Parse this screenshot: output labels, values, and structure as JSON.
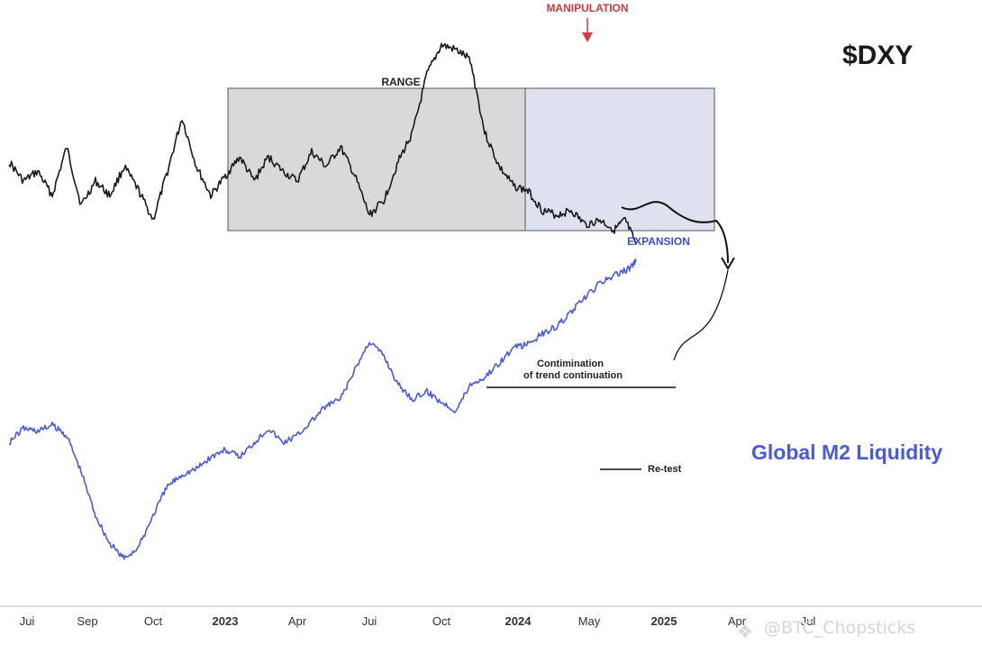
{
  "chart_data": {
    "type": "line",
    "title": "$DXY",
    "x_tick_labels": [
      "Jui",
      "Sep",
      "Oct",
      "2023",
      "Apr",
      "Jui",
      "Oct",
      "2024",
      "May",
      "2025",
      "Apr",
      "Jul"
    ],
    "series": [
      {
        "name": "$DXY",
        "color": "#1a1a1a",
        "x": [
          0,
          0.02,
          0.04,
          0.06,
          0.08,
          0.1,
          0.12,
          0.14,
          0.16,
          0.18,
          0.2,
          0.22,
          0.24,
          0.26,
          0.28,
          0.3,
          0.32,
          0.34,
          0.36,
          0.38,
          0.4,
          0.42,
          0.44,
          0.46,
          0.48,
          0.5,
          0.52,
          0.54,
          0.56,
          0.58,
          0.6,
          0.62,
          0.64,
          0.66,
          0.68,
          0.7,
          0.72,
          0.74,
          0.76,
          0.78,
          0.8,
          0.82,
          0.84,
          0.855,
          0.87
        ],
        "values": [
          108,
          104,
          106,
          101,
          111,
          99,
          104,
          101,
          107,
          102,
          96,
          106,
          117,
          107,
          101,
          105,
          109,
          104,
          109,
          106,
          104,
          110,
          107,
          111,
          105,
          97,
          100,
          108,
          114,
          126,
          132,
          131,
          129,
          114,
          107,
          103,
          102,
          98,
          97,
          98,
          95,
          96,
          94,
          96,
          91
        ]
      },
      {
        "name": "Global M2 Liquidity",
        "color": "#4a5bd8",
        "x": [
          0,
          0.02,
          0.04,
          0.06,
          0.08,
          0.1,
          0.12,
          0.14,
          0.16,
          0.18,
          0.2,
          0.22,
          0.24,
          0.26,
          0.28,
          0.3,
          0.32,
          0.34,
          0.36,
          0.38,
          0.4,
          0.42,
          0.44,
          0.46,
          0.48,
          0.5,
          0.52,
          0.54,
          0.56,
          0.58,
          0.6,
          0.62,
          0.64,
          0.66,
          0.68,
          0.7,
          0.72,
          0.74,
          0.76,
          0.78,
          0.8,
          0.82,
          0.84,
          0.86,
          0.87
        ],
        "values": [
          61,
          62,
          61.8,
          62.2,
          61.5,
          59,
          56,
          54,
          53,
          53.8,
          56,
          58,
          58.8,
          59.2,
          60,
          60.5,
          60,
          61,
          62,
          61,
          61.5,
          62.5,
          63.5,
          64,
          66,
          68,
          67,
          65,
          64,
          64.5,
          63.8,
          63.2,
          65,
          65.5,
          66.5,
          67.5,
          67.8,
          68.5,
          69,
          70,
          71,
          72,
          72.5,
          73,
          73.5
        ]
      }
    ],
    "annotations": {
      "range": "RANGE",
      "manipulation": "MANIPULATION",
      "expansion": "EXPANSION",
      "continuation_line1": "Contimination",
      "continuation_line2": "of trend continuation",
      "retest": "Re-test",
      "m2_label": "Global M2 Liquidity"
    },
    "colors": {
      "dxy": "#1a1a1a",
      "m2": "#4a5bd8",
      "manipulation": "#d13a3a",
      "expansion": "#3d4fd6",
      "range_box": "#d9d9d9",
      "expansion_box": "#dde2ee"
    }
  },
  "watermark": "@BTC_Chopsticks"
}
